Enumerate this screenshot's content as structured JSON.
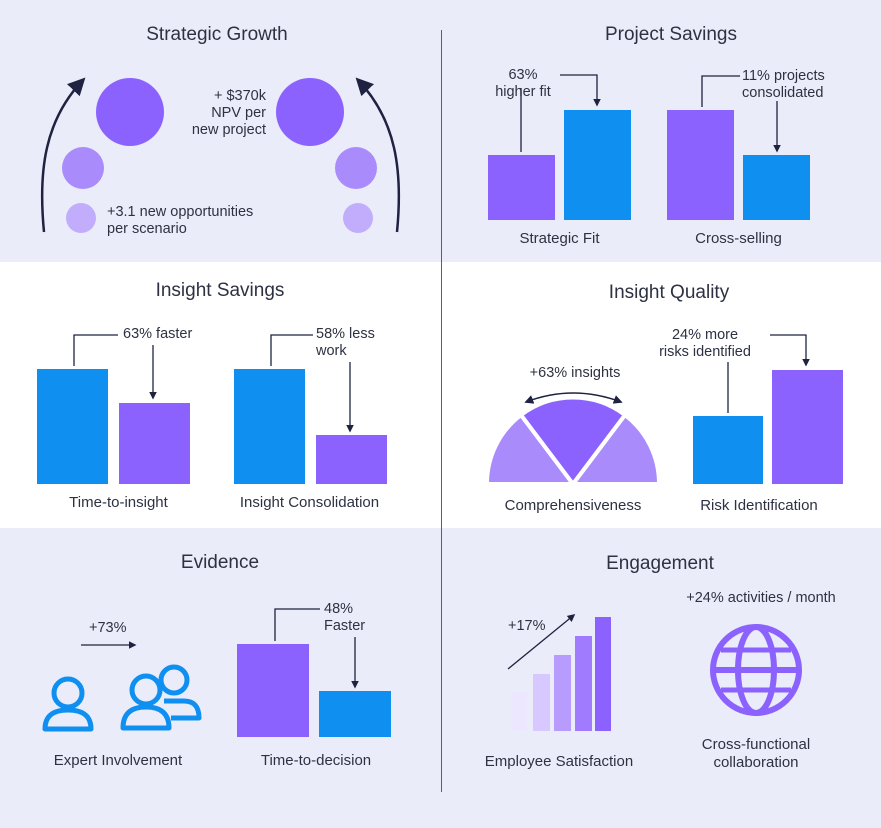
{
  "colors": {
    "blue": "#0f8ff0",
    "purple": "#8c62ff",
    "light_purple": "#a98bfb",
    "pale_purple": "#d7c9ff",
    "band": "#eaedf9",
    "text": "#2d3142",
    "arrow": "#1f2240"
  },
  "strategic_growth": {
    "title": "Strategic Growth",
    "npv_note": "+ $370k\nNPV per\nnew project",
    "opportunities_note": "+3.1 new opportunities\nper scenario"
  },
  "project_savings": {
    "title": "Project Savings",
    "strategic_fit": {
      "label": "Strategic Fit",
      "note": "63%\nhigher fit"
    },
    "cross_selling": {
      "label": "Cross-selling",
      "note": "11% projects\nconsolidated"
    }
  },
  "insight_savings": {
    "title": "Insight Savings",
    "time_to_insight": {
      "label": "Time-to-insight",
      "note": "63% faster"
    },
    "insight_consolidation": {
      "label": "Insight Consolidation",
      "note": "58% less\nwork"
    }
  },
  "insight_quality": {
    "title": "Insight Quality",
    "comprehensiveness": {
      "label": "Comprehensiveness",
      "note": "+63% insights"
    },
    "risk_identification": {
      "label": "Risk Identification",
      "note": "24% more\nrisks identified"
    }
  },
  "evidence": {
    "title": "Evidence",
    "expert_involvement": {
      "label": "Expert Involvement",
      "note": "+73%"
    },
    "time_to_decision": {
      "label": "Time-to-decision",
      "note": "48%\nFaster"
    }
  },
  "engagement": {
    "title": "Engagement",
    "employee_satisfaction": {
      "label": "Employee Satisfaction",
      "note": "+17%"
    },
    "collaboration": {
      "label": "Cross-functional\ncollaboration",
      "note": "+24% activities / month"
    }
  },
  "icons": [
    "arc-arrow-icon",
    "person-icon",
    "people-group-icon",
    "globe-icon",
    "signal-bars-icon"
  ]
}
